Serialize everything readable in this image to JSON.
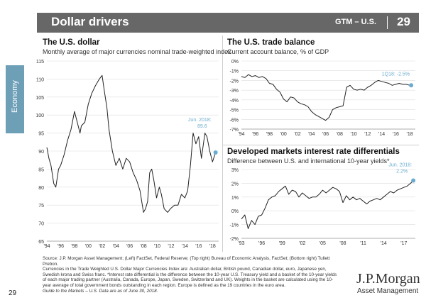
{
  "header": {
    "title": "Dollar drivers",
    "section": "GTM – U.S.",
    "page": "29"
  },
  "side_tab": {
    "label": "Economy"
  },
  "footer": {
    "source_lines": [
      "Source: J.P. Morgan Asset Management; (Left) FactSet, Federal Reserve; (Top right) Bureau of Economic Analysis, FactSet; (Bottom right) Tullett Prebon.",
      "Currencies in the Trade Weighted U.S. Dollar Major Currencies Index are: Australian dollar, British pound, Canadian dollar, euro, Japanese yen, Swedish krona and Swiss franc. *Interest rate differential is the difference between the 10-year U.S. Treasury yield and a basket of the 10-year yields of each major trading partner (Australia, Canada, Europe, Japan, Sweden, Switzerland and UK). Weights in the basket are calculated using the 10-year average of total government bonds outstanding in each region. Europe is defined as the 19 countries in the euro area.",
      "Guide to the Markets – U.S. Data are as of June 30, 2018."
    ],
    "page_number": "29",
    "logo": "J.P.Morgan",
    "logo_sub": "Asset Management"
  },
  "colors": {
    "line": "#222222",
    "highlight": "#6aaccf",
    "grid": "#dddddd"
  },
  "chart_data": [
    {
      "id": "usd",
      "type": "line",
      "title": "The U.S. dollar",
      "subtitle": "Monthly average of major currencies nominal trade-weighted index",
      "ylim": [
        65,
        115
      ],
      "yticks": [
        65,
        70,
        75,
        80,
        85,
        90,
        95,
        100,
        105,
        110,
        115
      ],
      "ytick_labels": [
        "65",
        "70",
        "75",
        "80",
        "85",
        "90",
        "95",
        "100",
        "105",
        "110",
        "115"
      ],
      "xlim": [
        1994,
        2018.9
      ],
      "xticks": [
        1994,
        1996,
        1998,
        2000,
        2002,
        2004,
        2006,
        2008,
        2010,
        2012,
        2014,
        2016,
        2018
      ],
      "xtick_labels": [
        "'94",
        "'96",
        "'98",
        "'00",
        "'02",
        "'04",
        "'06",
        "'08",
        "'10",
        "'12",
        "'14",
        "'16",
        "'18"
      ],
      "annotation": {
        "line1": "Jun. 2018:",
        "line2": "89.6",
        "x": 2018.45,
        "y": 89.6
      },
      "series": [
        {
          "name": "Major currencies index",
          "x": [
            1994,
            1994.3,
            1994.6,
            1995,
            1995.3,
            1995.7,
            1996,
            1996.5,
            1997,
            1997.5,
            1998,
            1998.4,
            1998.8,
            1999,
            1999.5,
            2000,
            2000.5,
            2001,
            2001.3,
            2001.6,
            2002,
            2002.3,
            2002.7,
            2003,
            2003.5,
            2004,
            2004.5,
            2005,
            2005.5,
            2006,
            2006.5,
            2007,
            2007.5,
            2008,
            2008.3,
            2008.6,
            2008.9,
            2009.2,
            2009.5,
            2009.9,
            2010.3,
            2010.6,
            2011,
            2011.5,
            2011.9,
            2012.5,
            2013,
            2013.5,
            2014,
            2014.4,
            2014.8,
            2015.2,
            2015.6,
            2016,
            2016.4,
            2016.9,
            2017.2,
            2017.6,
            2018,
            2018.45
          ],
          "y": [
            91,
            88,
            86,
            81,
            80,
            85,
            86,
            89,
            93,
            96,
            101,
            98,
            95,
            97,
            98,
            103,
            106,
            108,
            109,
            110,
            111,
            107,
            102,
            96,
            90,
            86,
            88,
            85,
            88,
            87,
            84,
            82,
            79,
            73,
            74,
            76,
            84,
            85,
            82,
            77,
            80,
            78,
            74,
            73,
            74,
            75,
            75,
            78,
            77,
            79,
            86,
            95,
            92,
            94,
            88,
            95,
            94,
            90,
            87,
            89.6
          ]
        }
      ]
    },
    {
      "id": "trade",
      "type": "line",
      "title": "The U.S. trade balance",
      "subtitle": "Current account balance, % of GDP",
      "ylim": [
        -7,
        0
      ],
      "yticks": [
        -7,
        -6,
        -5,
        -4,
        -3,
        -2,
        -1,
        0
      ],
      "ytick_labels": [
        "-7%",
        "-6%",
        "-5%",
        "-4%",
        "-3%",
        "-2%",
        "-1%",
        "0%"
      ],
      "xlim": [
        1994,
        2018.8
      ],
      "xticks": [
        1994,
        1996,
        1998,
        2000,
        2002,
        2004,
        2006,
        2008,
        2010,
        2012,
        2014,
        2016,
        2018
      ],
      "xtick_labels": [
        "'94",
        "'96",
        "'98",
        "'00",
        "'02",
        "'04",
        "'06",
        "'08",
        "'10",
        "'12",
        "'14",
        "'16",
        "'18"
      ],
      "annotation": {
        "line1": "1Q18: -2.5%",
        "x": 2018.2,
        "y": -2.5
      },
      "series": [
        {
          "name": "Current account % of GDP",
          "x": [
            1994,
            1994.5,
            1995,
            1995.5,
            1996,
            1996.5,
            1997,
            1997.5,
            1998,
            1998.5,
            1999,
            1999.5,
            2000,
            2000.5,
            2001,
            2001.5,
            2002,
            2002.5,
            2003,
            2003.5,
            2004,
            2004.5,
            2005,
            2005.5,
            2006,
            2006.5,
            2007,
            2007.5,
            2008,
            2008.5,
            2009,
            2009.5,
            2010,
            2010.5,
            2011,
            2011.5,
            2012,
            2012.5,
            2013,
            2013.5,
            2014,
            2014.5,
            2015,
            2015.5,
            2016,
            2016.5,
            2017,
            2017.5,
            2018,
            2018.2
          ],
          "y": [
            -1.6,
            -1.7,
            -1.4,
            -1.6,
            -1.5,
            -1.7,
            -1.6,
            -1.8,
            -2.3,
            -2.4,
            -2.9,
            -3.2,
            -3.9,
            -4.2,
            -3.7,
            -3.8,
            -4.2,
            -4.4,
            -4.5,
            -4.7,
            -5.2,
            -5.5,
            -5.7,
            -5.9,
            -6.1,
            -5.8,
            -5.0,
            -4.8,
            -4.7,
            -4.6,
            -2.7,
            -2.5,
            -2.9,
            -3.0,
            -2.9,
            -3.0,
            -2.7,
            -2.5,
            -2.2,
            -2.0,
            -2.1,
            -2.2,
            -2.3,
            -2.5,
            -2.4,
            -2.3,
            -2.4,
            -2.4,
            -2.5,
            -2.5
          ]
        }
      ]
    },
    {
      "id": "rates",
      "type": "line",
      "title": "Developed markets interest rate differentials",
      "subtitle": "Difference between U.S. and international 10-year yields*",
      "ylim": [
        -2,
        3
      ],
      "yticks": [
        -2,
        -1,
        0,
        1,
        2,
        3
      ],
      "ytick_labels": [
        "-2%",
        "-1%",
        "0%",
        "1%",
        "2%",
        "3%"
      ],
      "xlim": [
        1993,
        2018.7
      ],
      "xticks": [
        1993,
        1996,
        1999,
        2002,
        2005,
        2008,
        2011,
        2014,
        2017
      ],
      "xtick_labels": [
        "'93",
        "'96",
        "'99",
        "'02",
        "'05",
        "'08",
        "'11",
        "'14",
        "'17"
      ],
      "annotation": {
        "line1": "Jun. 2018:",
        "line2": "2.2%",
        "x": 2018.4,
        "y": 2.2
      },
      "series": [
        {
          "name": "U.S. minus international 10-year yield",
          "x": [
            1993,
            1993.5,
            1994,
            1994.5,
            1995,
            1995.5,
            1996,
            1996.5,
            1997,
            1997.5,
            1998,
            1998.5,
            1999,
            1999.5,
            2000,
            2000.5,
            2001,
            2001.5,
            2002,
            2002.5,
            2003,
            2003.5,
            2004,
            2004.5,
            2005,
            2005.5,
            2006,
            2006.5,
            2007,
            2007.5,
            2008,
            2008.5,
            2009,
            2009.5,
            2010,
            2010.5,
            2011,
            2011.5,
            2012,
            2012.5,
            2013,
            2013.5,
            2014,
            2014.5,
            2015,
            2015.5,
            2016,
            2016.5,
            2017,
            2017.5,
            2018,
            2018.4
          ],
          "y": [
            -0.6,
            -0.3,
            -1.3,
            -0.7,
            -1.0,
            -0.4,
            -0.3,
            0.2,
            0.8,
            1.0,
            1.1,
            1.4,
            1.6,
            1.8,
            1.2,
            1.5,
            1.4,
            1.0,
            1.3,
            1.1,
            0.9,
            1.0,
            1.0,
            1.2,
            1.5,
            1.3,
            1.5,
            1.7,
            1.6,
            1.4,
            0.6,
            1.1,
            0.8,
            1.0,
            0.8,
            0.9,
            0.7,
            0.5,
            0.7,
            0.8,
            0.9,
            0.8,
            1.0,
            1.2,
            1.4,
            1.3,
            1.5,
            1.6,
            1.7,
            1.8,
            2.0,
            2.2
          ]
        }
      ]
    }
  ]
}
